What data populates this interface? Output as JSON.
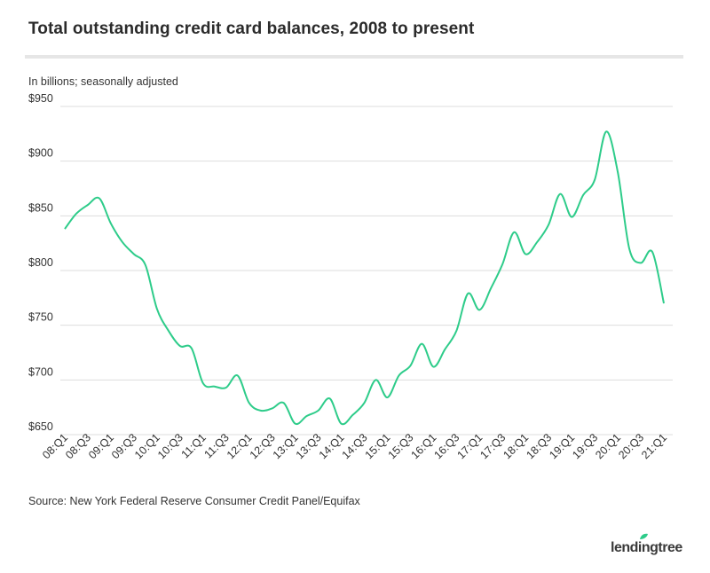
{
  "chart_data": {
    "type": "line",
    "title": "Total outstanding credit card balances, 2008 to present",
    "subtitle": "In billions; seasonally adjusted",
    "ylim": [
      650,
      950
    ],
    "y_ticks": [
      "$950",
      "$900",
      "$850",
      "$800",
      "$750",
      "$700",
      "$650"
    ],
    "y_tick_values": [
      950,
      900,
      850,
      800,
      750,
      700,
      650
    ],
    "x_ticks": [
      "08:Q1",
      "08:Q3",
      "09:Q1",
      "09:Q3",
      "10:Q1",
      "10:Q3",
      "11:Q1",
      "11:Q3",
      "12:Q1",
      "12:Q3",
      "13:Q1",
      "13:Q3",
      "14:Q1",
      "14:Q3",
      "15:Q1",
      "15:Q3",
      "16:Q1",
      "16:Q3",
      "17:Q1",
      "17:Q3",
      "18:Q1",
      "18:Q3",
      "19:Q1",
      "19:Q3",
      "20:Q1",
      "20:Q3",
      "21:Q1"
    ],
    "x": [
      "08:Q1",
      "08:Q2",
      "08:Q3",
      "08:Q4",
      "09:Q1",
      "09:Q2",
      "09:Q3",
      "09:Q4",
      "10:Q1",
      "10:Q2",
      "10:Q3",
      "10:Q4",
      "11:Q1",
      "11:Q2",
      "11:Q3",
      "11:Q4",
      "12:Q1",
      "12:Q2",
      "12:Q3",
      "12:Q4",
      "13:Q1",
      "13:Q2",
      "13:Q3",
      "13:Q4",
      "14:Q1",
      "14:Q2",
      "14:Q3",
      "14:Q4",
      "15:Q1",
      "15:Q2",
      "15:Q3",
      "15:Q4",
      "16:Q1",
      "16:Q2",
      "16:Q3",
      "16:Q4",
      "17:Q1",
      "17:Q2",
      "17:Q3",
      "17:Q4",
      "18:Q1",
      "18:Q2",
      "18:Q3",
      "18:Q4",
      "19:Q1",
      "19:Q2",
      "19:Q3",
      "19:Q4",
      "20:Q1",
      "20:Q2",
      "20:Q3",
      "20:Q4",
      "21:Q1"
    ],
    "series": [
      {
        "name": "Credit card balances",
        "color": "#2ecc8a",
        "values": [
          838,
          852,
          860,
          866,
          843,
          826,
          815,
          805,
          765,
          745,
          731,
          729,
          697,
          694,
          693,
          704,
          679,
          672,
          674,
          679,
          660,
          667,
          672,
          683,
          660,
          668,
          679,
          700,
          684,
          704,
          713,
          733,
          712,
          728,
          745,
          779,
          764,
          784,
          806,
          835,
          815,
          826,
          842,
          870,
          849,
          869,
          883,
          927,
          890,
          820,
          807,
          817,
          770
        ]
      }
    ],
    "line_color": "#2ecc8a",
    "gridline_color": "#dddddd"
  },
  "source": "Source: New York Federal Reserve Consumer Credit Panel/Equifax",
  "logo": {
    "text": "lendingtree",
    "color": "#3a3a3a",
    "leaf_color": "#2ecc8a"
  }
}
